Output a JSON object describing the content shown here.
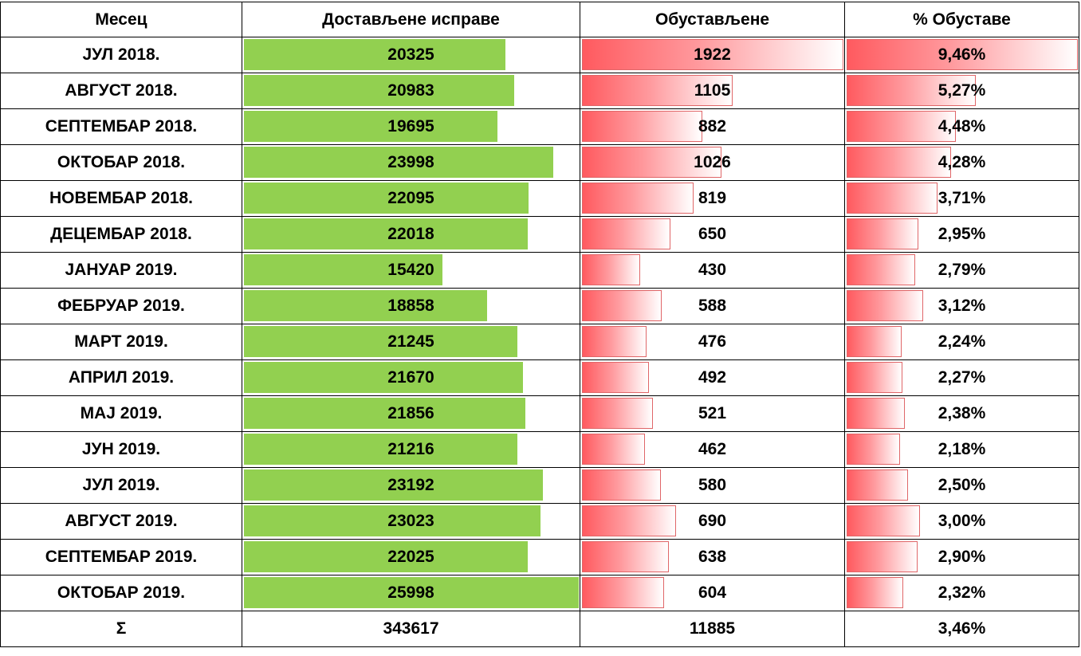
{
  "header": {
    "month": "Месец",
    "delivered": "Достављене исправе",
    "suspended": "Обустављене",
    "percent": "% Обуставе"
  },
  "scale": {
    "delivered_max": 25998,
    "suspended_max": 1922,
    "percent_max": 9.46
  },
  "colors": {
    "green_bar": "#92d050",
    "red_bar": "#ff5a5f",
    "grid": "#000000"
  },
  "rows": [
    {
      "month": "ЈУЛ 2018.",
      "delivered": "20325",
      "suspended": "1922",
      "percent": "9,46%",
      "d": 20325,
      "s": 1922,
      "p": 9.46
    },
    {
      "month": "АВГУСТ 2018.",
      "delivered": "20983",
      "suspended": "1105",
      "percent": "5,27%",
      "d": 20983,
      "s": 1105,
      "p": 5.27
    },
    {
      "month": "СЕПТЕМБАР 2018.",
      "delivered": "19695",
      "suspended": "882",
      "percent": "4,48%",
      "d": 19695,
      "s": 882,
      "p": 4.48
    },
    {
      "month": "ОКТОБАР 2018.",
      "delivered": "23998",
      "suspended": "1026",
      "percent": "4,28%",
      "d": 23998,
      "s": 1026,
      "p": 4.28
    },
    {
      "month": "НОВЕМБАР 2018.",
      "delivered": "22095",
      "suspended": "819",
      "percent": "3,71%",
      "d": 22095,
      "s": 819,
      "p": 3.71
    },
    {
      "month": "ДЕЦЕМБАР 2018.",
      "delivered": "22018",
      "suspended": "650",
      "percent": "2,95%",
      "d": 22018,
      "s": 650,
      "p": 2.95
    },
    {
      "month": "ЈАНУАР 2019.",
      "delivered": "15420",
      "suspended": "430",
      "percent": "2,79%",
      "d": 15420,
      "s": 430,
      "p": 2.79
    },
    {
      "month": "ФЕБРУАР 2019.",
      "delivered": "18858",
      "suspended": "588",
      "percent": "3,12%",
      "d": 18858,
      "s": 588,
      "p": 3.12
    },
    {
      "month": "МАРТ 2019.",
      "delivered": "21245",
      "suspended": "476",
      "percent": "2,24%",
      "d": 21245,
      "s": 476,
      "p": 2.24
    },
    {
      "month": "АПРИЛ 2019.",
      "delivered": "21670",
      "suspended": "492",
      "percent": "2,27%",
      "d": 21670,
      "s": 492,
      "p": 2.27
    },
    {
      "month": "МАЈ 2019.",
      "delivered": "21856",
      "suspended": "521",
      "percent": "2,38%",
      "d": 21856,
      "s": 521,
      "p": 2.38
    },
    {
      "month": "ЈУН 2019.",
      "delivered": "21216",
      "suspended": "462",
      "percent": "2,18%",
      "d": 21216,
      "s": 462,
      "p": 2.18
    },
    {
      "month": "ЈУЛ 2019.",
      "delivered": "23192",
      "suspended": "580",
      "percent": "2,50%",
      "d": 23192,
      "s": 580,
      "p": 2.5
    },
    {
      "month": "АВГУСТ 2019.",
      "delivered": "23023",
      "suspended": "690",
      "percent": "3,00%",
      "d": 23023,
      "s": 690,
      "p": 3.0
    },
    {
      "month": "СЕПТЕМБАР 2019.",
      "delivered": "22025",
      "suspended": "638",
      "percent": "2,90%",
      "d": 22025,
      "s": 638,
      "p": 2.9
    },
    {
      "month": "ОКТОБАР 2019.",
      "delivered": "25998",
      "suspended": "604",
      "percent": "2,32%",
      "d": 25998,
      "s": 604,
      "p": 2.32
    }
  ],
  "total": {
    "label": "Σ",
    "delivered": "343617",
    "suspended": "11885",
    "percent": "3,46%"
  }
}
